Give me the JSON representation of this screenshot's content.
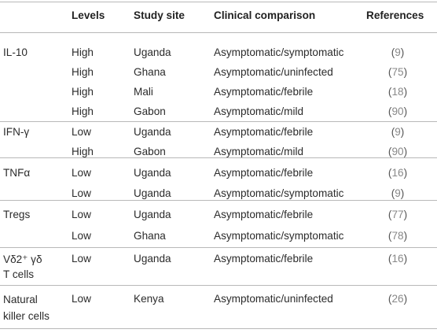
{
  "header": {
    "col_marker": "",
    "col_levels": "Levels",
    "col_site": "Study site",
    "col_comparison": "Clinical comparison",
    "col_references": "References"
  },
  "rows": [
    {
      "marker": "IL-10",
      "level": "High",
      "site": "Uganda",
      "comparison": "Asymptomatic/symptomatic",
      "ref": "9"
    },
    {
      "marker": "",
      "level": "High",
      "site": "Ghana",
      "comparison": "Asymptomatic/uninfected",
      "ref": "75"
    },
    {
      "marker": "",
      "level": "High",
      "site": "Mali",
      "comparison": "Asymptomatic/febrile",
      "ref": "18"
    },
    {
      "marker": "",
      "level": "High",
      "site": "Gabon",
      "comparison": "Asymptomatic/mild",
      "ref": "90"
    },
    {
      "marker": "IFN-γ",
      "level": "Low",
      "site": "Uganda",
      "comparison": "Asymptomatic/febrile",
      "ref": "9"
    },
    {
      "marker": "",
      "level": "High",
      "site": "Gabon",
      "comparison": "Asymptomatic/mild",
      "ref": "90"
    },
    {
      "marker": "TNFα",
      "level": "Low",
      "site": "Uganda",
      "comparison": "Asymptomatic/febrile",
      "ref": "16"
    },
    {
      "marker": "",
      "level": "Low",
      "site": "Uganda",
      "comparison": "Asymptomatic/symptomatic",
      "ref": "9"
    },
    {
      "marker": "Tregs",
      "level": "Low",
      "site": "Uganda",
      "comparison": "Asymptomatic/febrile",
      "ref": "77"
    },
    {
      "marker": "",
      "level": "Low",
      "site": "Ghana",
      "comparison": "Asymptomatic/symptomatic",
      "ref": "78"
    },
    {
      "marker_line1": "Vδ2⁺ γδ",
      "marker_line2": "T cells",
      "level": "Low",
      "site": "Uganda",
      "comparison": "Asymptomatic/febrile",
      "ref": "16"
    },
    {
      "marker_line1": "Natural",
      "marker_line2": "killer cells",
      "level": "Low",
      "site": "Kenya",
      "comparison": "Asymptomatic/uninfected",
      "ref": "26"
    }
  ]
}
